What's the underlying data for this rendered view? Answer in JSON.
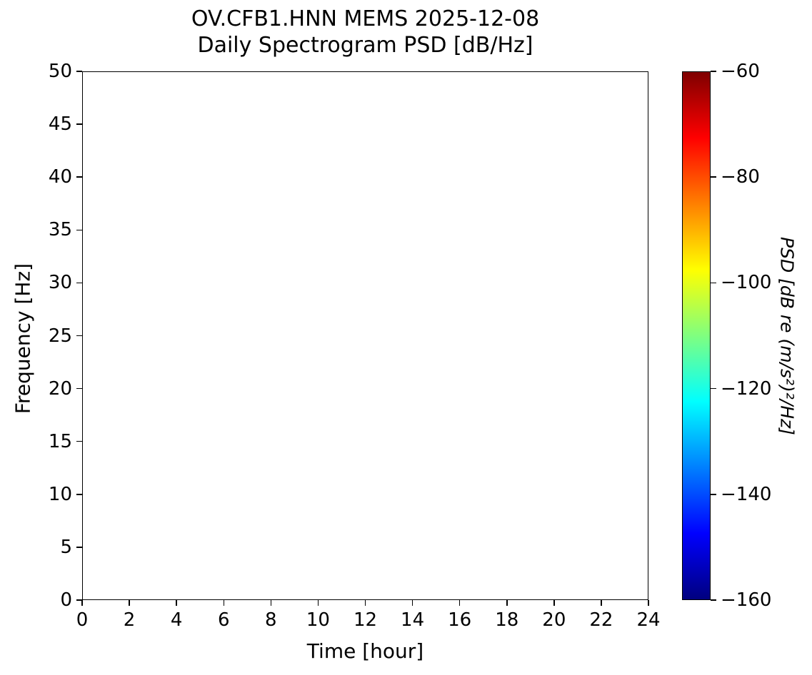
{
  "chart_data": {
    "type": "heatmap",
    "subtype": "spectrogram",
    "title_line1": "OV.CFB1.HNN MEMS 2025-12-08",
    "title_line2": "Daily Spectrogram PSD [dB/Hz]",
    "xlabel": "Time [hour]",
    "ylabel": "Frequency [Hz]",
    "xlim": [
      0,
      24
    ],
    "ylim": [
      0,
      50
    ],
    "x_ticks": [
      0,
      2,
      4,
      6,
      8,
      10,
      12,
      14,
      16,
      18,
      20,
      22,
      24
    ],
    "y_ticks": [
      0,
      5,
      10,
      15,
      20,
      25,
      30,
      35,
      40,
      45,
      50
    ],
    "values": [],
    "plot_area_note": "empty - no spectrogram data rendered, plot background is white",
    "grid": false,
    "colorbar": {
      "label": "PSD [dB re (m/s²)²/Hz]",
      "colormap": "jet",
      "range": [
        -160,
        -60
      ],
      "ticks": [
        {
          "label": "−60",
          "value": -60
        },
        {
          "label": "−80",
          "value": -80
        },
        {
          "label": "−100",
          "value": -100
        },
        {
          "label": "−120",
          "value": -120
        },
        {
          "label": "−140",
          "value": -140
        },
        {
          "label": "−160",
          "value": -160
        }
      ],
      "gradient_stops": [
        {
          "color": "#00007f",
          "pos": 0
        },
        {
          "color": "#0000ff",
          "pos": 12.5
        },
        {
          "color": "#00ffff",
          "pos": 37.5
        },
        {
          "color": "#ffff00",
          "pos": 62.5
        },
        {
          "color": "#ff0000",
          "pos": 87.5
        },
        {
          "color": "#7f0000",
          "pos": 100
        }
      ]
    },
    "colors": {
      "axes": "#000000",
      "background": "#ffffff",
      "text": "#000000"
    }
  }
}
